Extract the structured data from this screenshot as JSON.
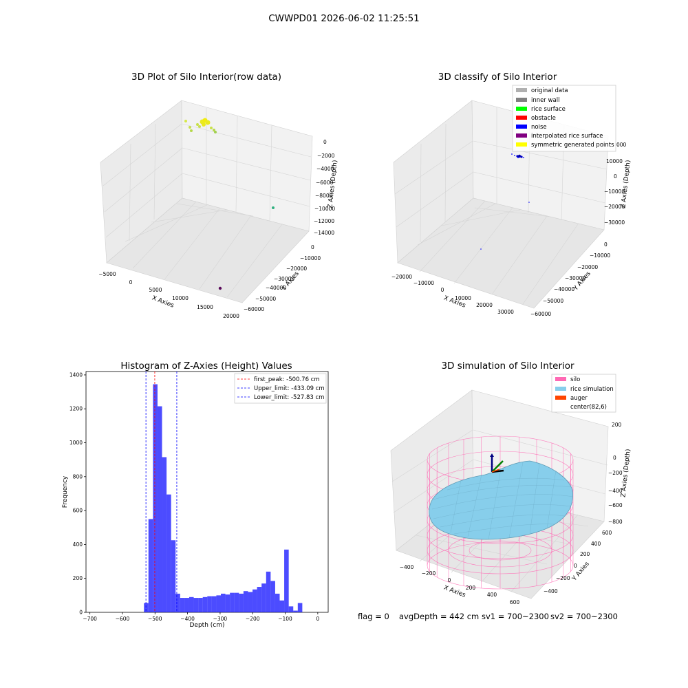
{
  "figure": {
    "title": "CWWPD01 2026-06-02 11:25:51",
    "status": {
      "flag": "flag = 0",
      "avg_depth": "avgDepth = 442 cm",
      "sv1": "sv1 = 700~2300",
      "sv2": "sv2 = 700~2300"
    }
  },
  "panels": {
    "raw": {
      "title": "3D Plot of Silo Interior(row data)",
      "xlabel": "X Axies",
      "ylabel": "Y Axies",
      "zlabel": "Z Axies (Depth)",
      "xticks": [
        "−5000",
        "0",
        "5000",
        "10000",
        "15000",
        "20000"
      ],
      "yticks": [
        "0",
        "−10000",
        "−20000",
        "−30000",
        "−40000",
        "−50000",
        "−60000"
      ],
      "zticks": [
        "0",
        "−2000",
        "−4000",
        "−6000",
        "−8000",
        "−10000",
        "−12000",
        "−14000"
      ]
    },
    "classify": {
      "title": "3D classify of Silo Interior",
      "xlabel": "X Axies",
      "ylabel": "Y Axies",
      "zlabel": "Z Axies (Depth)",
      "xticks": [
        "−20000",
        "−10000",
        "0",
        "10000",
        "20000",
        "30000"
      ],
      "yticks": [
        "0",
        "−10000",
        "−20000",
        "−30000",
        "−40000",
        "−50000",
        "−60000"
      ],
      "zticks": [
        "10000",
        "0",
        "−10000",
        "−20000",
        "−30000"
      ],
      "legend": [
        {
          "label": "original data",
          "color": "#b0b0b0"
        },
        {
          "label": "inner wall",
          "color": "#808080"
        },
        {
          "label": "rice surface",
          "color": "#00ff00"
        },
        {
          "label": "obstacle",
          "color": "#ff0000"
        },
        {
          "label": "noise",
          "color": "#0000ff"
        },
        {
          "label": "interpolated rice surface",
          "color": "#800080"
        },
        {
          "label": "symmetric generated points",
          "color": "#ffff00"
        }
      ],
      "legend_partial_tick": "000"
    },
    "simulation": {
      "title": "3D simulation of Silo Interior",
      "xlabel": "X Axies",
      "ylabel": "Y Axies",
      "zlabel": "Z Axies (Depth)",
      "xticks": [
        "−400",
        "−200",
        "0",
        "200",
        "400",
        "600"
      ],
      "yticks": [
        "600",
        "400",
        "200",
        "0",
        "−200",
        "−400"
      ],
      "zticks": [
        "200",
        "0",
        "−200",
        "−400",
        "−600",
        "−800"
      ],
      "legend": [
        {
          "label": "silo",
          "color": "#ff69b4"
        },
        {
          "label": "rice simulation",
          "color": "#87ceeb"
        },
        {
          "label": "auger",
          "color": "#ff4500"
        },
        {
          "label": "center(82,6)",
          "color": ""
        }
      ]
    }
  },
  "chart_data": {
    "type": "bar",
    "title": "Histogram of Z-Axies (Height) Values",
    "xlabel": "Depth (cm)",
    "ylabel": "Frequency",
    "xlim": [
      -712,
      32
    ],
    "ylim": [
      0,
      1420
    ],
    "xticks": [
      -700,
      -600,
      -500,
      -400,
      -300,
      -200,
      -100,
      0
    ],
    "yticks": [
      0,
      200,
      400,
      600,
      800,
      1000,
      1200,
      1400
    ],
    "bin_start": -534,
    "bin_width": 13.9,
    "values": [
      55,
      550,
      1345,
      1215,
      915,
      695,
      425,
      110,
      85,
      85,
      90,
      85,
      85,
      90,
      95,
      95,
      100,
      110,
      105,
      115,
      115,
      110,
      125,
      120,
      135,
      150,
      170,
      240,
      185,
      110,
      70,
      370,
      35,
      10,
      55
    ],
    "bar_color": "#0000ff",
    "lines": [
      {
        "label": "first_peak: -500.76 cm",
        "x": -500.76,
        "color": "#ff0000"
      },
      {
        "label": "Upper_limit: -433.09 cm",
        "x": -433.09,
        "color": "#0000ff"
      },
      {
        "label": "Lower_limit: -527.83 cm",
        "x": -527.83,
        "color": "#0000ff"
      }
    ],
    "legend_position": "upper right"
  }
}
